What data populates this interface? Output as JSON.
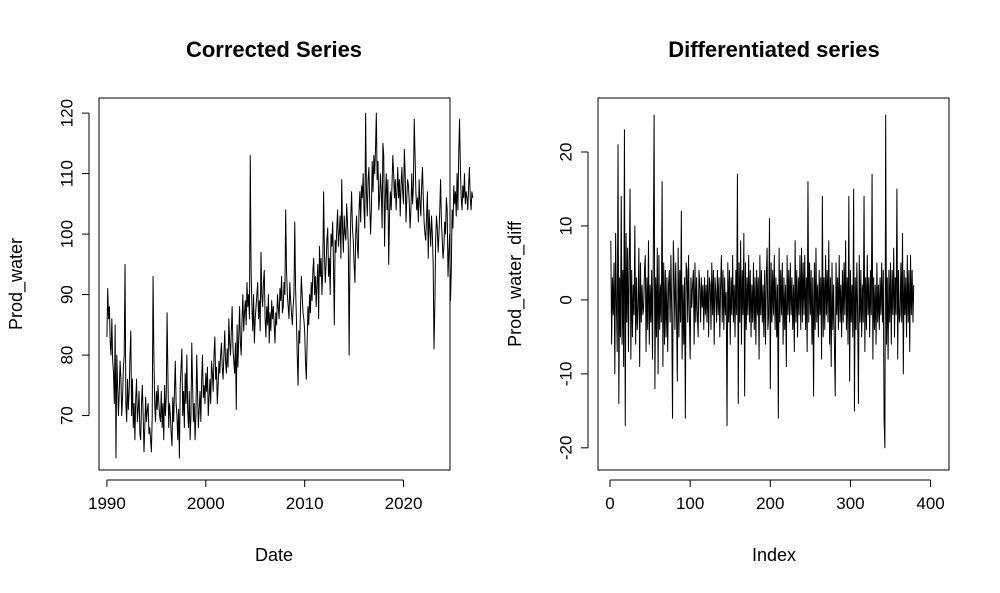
{
  "chart_data": [
    {
      "type": "line",
      "title": "Corrected Series",
      "xlabel": "Date",
      "ylabel": "Prod_water",
      "xlim": [
        1989.2,
        2024.7
      ],
      "ylim": [
        61,
        122.5
      ],
      "xticks": [
        1990,
        2000,
        2010,
        2020
      ],
      "yticks": [
        70,
        80,
        90,
        100,
        110,
        120
      ],
      "grid": false,
      "legend": "none",
      "color": "#000000",
      "series": [
        {
          "x_start": 1990.0,
          "x_step": 0.08333,
          "values": [
            83,
            91,
            86,
            88,
            82,
            80,
            86,
            79,
            77,
            72,
            85,
            63,
            80,
            75,
            70,
            74,
            79,
            76,
            70,
            73,
            78,
            80,
            95,
            72,
            69,
            76,
            71,
            74,
            80,
            84,
            70,
            76,
            68,
            72,
            66,
            73,
            76,
            69,
            71,
            74,
            67,
            66,
            72,
            75,
            70,
            64,
            68,
            73,
            69,
            71,
            72,
            67,
            68,
            66,
            64,
            70,
            93,
            80,
            72,
            69,
            74,
            71,
            75,
            72,
            70,
            69,
            74,
            68,
            72,
            66,
            75,
            70,
            73,
            87,
            77,
            68,
            72,
            70,
            67,
            65,
            73,
            69,
            74,
            79,
            72,
            70,
            66,
            71,
            63,
            75,
            78,
            81,
            70,
            74,
            68,
            77,
            72,
            80,
            71,
            68,
            74,
            66,
            70,
            82,
            75,
            69,
            72,
            66,
            70,
            80,
            74,
            68,
            71,
            74,
            69,
            76,
            80,
            73,
            75,
            72,
            77,
            74,
            78,
            70,
            73,
            76,
            72,
            79,
            77,
            74,
            80,
            83,
            76,
            78,
            72,
            75,
            79,
            77,
            80,
            82,
            78,
            76,
            80,
            84,
            79,
            77,
            81,
            78,
            86,
            82,
            80,
            84,
            88,
            81,
            79,
            77,
            82,
            71,
            85,
            78,
            83,
            88,
            82,
            80,
            86,
            90,
            84,
            87,
            89,
            85,
            92,
            88,
            90,
            86,
            113,
            94,
            88,
            84,
            90,
            82,
            86,
            88,
            90,
            92,
            86,
            89,
            84,
            97,
            90,
            88,
            92,
            94,
            86,
            83,
            88,
            85,
            90,
            82,
            87,
            84,
            89,
            86,
            88,
            85,
            82,
            87,
            85,
            90,
            88,
            86,
            91,
            89,
            93,
            87,
            88,
            92,
            90,
            104,
            94,
            90,
            88,
            86,
            92,
            89,
            87,
            85,
            88,
            90,
            102,
            91,
            86,
            80,
            75,
            84,
            82,
            88,
            93,
            90,
            87,
            86,
            84,
            79,
            76,
            82,
            88,
            85,
            90,
            87,
            92,
            89,
            94,
            96,
            90,
            93,
            88,
            92,
            95,
            86,
            98,
            93,
            96,
            90,
            94,
            107,
            97,
            92,
            95,
            99,
            101,
            93,
            96,
            90,
            100,
            98,
            102,
            95,
            85,
            99,
            97,
            101,
            104,
            98,
            100,
            103,
            96,
            109,
            101,
            97,
            103,
            100,
            99,
            105,
            102,
            98,
            80,
            96,
            103,
            107,
            101,
            99,
            95,
            92,
            100,
            103,
            98,
            96,
            104,
            107,
            102,
            108,
            106,
            110,
            104,
            101,
            120,
            107,
            103,
            109,
            111,
            105,
            100,
            104,
            112,
            107,
            113,
            110,
            114,
            120,
            109,
            112,
            104,
            106,
            110,
            107,
            101,
            115,
            113,
            98,
            106,
            110,
            104,
            109,
            95,
            103,
            107,
            104,
            108,
            113,
            110,
            106,
            109,
            104,
            107,
            111,
            106,
            109,
            103,
            108,
            111,
            107,
            105,
            114,
            110,
            102,
            106,
            109,
            108,
            105,
            101,
            104,
            110,
            105,
            108,
            119,
            113,
            107,
            104,
            106,
            102,
            109,
            105,
            103,
            108,
            111,
            106,
            102,
            100,
            99,
            103,
            107,
            96,
            104,
            101,
            98,
            103,
            100,
            95,
            81,
            88,
            99,
            103,
            101,
            97,
            100,
            104,
            109,
            102,
            99,
            96,
            98,
            102,
            100,
            106,
            104,
            93,
            97,
            100,
            89,
            94,
            104,
            101,
            108,
            105,
            107,
            103,
            110,
            104,
            113,
            119,
            111,
            106,
            104,
            108,
            106,
            110,
            105,
            107,
            106,
            104,
            108,
            111,
            106,
            104,
            107,
            106
          ]
        }
      ]
    },
    {
      "type": "line",
      "title": "Differentiated series",
      "xlabel": "Index",
      "ylabel": "Prod_water_diff",
      "xlim": [
        -15,
        423
      ],
      "ylim": [
        -23,
        27.3
      ],
      "xticks": [
        0,
        100,
        200,
        300,
        400
      ],
      "yticks": [
        -20,
        -10,
        0,
        10,
        20
      ],
      "grid": false,
      "legend": "none",
      "color": "#000000",
      "series": [
        {
          "x_start": 1,
          "x_step": 1,
          "values": [
            8,
            -6,
            3,
            -2,
            5,
            -10,
            9,
            -1,
            -7,
            21,
            -14,
            3,
            -5,
            14,
            -6,
            4,
            -9,
            23,
            -17,
            9,
            -3,
            7,
            -7,
            5,
            15,
            -8,
            4,
            -5,
            2,
            -2,
            10,
            -6,
            3,
            -4,
            -1,
            7,
            -9,
            5,
            -3,
            2,
            -2,
            -1,
            4,
            6,
            -7,
            3,
            -4,
            8,
            -6,
            2,
            -3,
            4,
            -8,
            6,
            25,
            -12,
            3,
            -5,
            7,
            -10,
            6,
            -4,
            2,
            -3,
            16,
            -9,
            5,
            -6,
            4,
            -5,
            3,
            -7,
            2,
            4,
            -3,
            6,
            -2,
            -16,
            8,
            3,
            -4,
            5,
            -2,
            -11,
            7,
            -5,
            4,
            -3,
            12,
            -8,
            2,
            -6,
            3,
            -16,
            5,
            4,
            -3,
            6,
            -2,
            -8,
            3,
            -1,
            2,
            4,
            -6,
            5,
            -3,
            3,
            -2,
            -5,
            4,
            2,
            -3,
            3,
            -1,
            2,
            -4,
            3,
            -2,
            2,
            -3,
            4,
            -5,
            3,
            2,
            -4,
            5,
            -2,
            4,
            -6,
            3,
            1,
            -3,
            4,
            -2,
            3,
            -5,
            2,
            6,
            -3,
            4,
            -4,
            3,
            -2,
            1,
            -17,
            5,
            -3,
            4,
            -6,
            3,
            -2,
            6,
            -3,
            2,
            -5,
            4,
            -2,
            17,
            -14,
            5,
            -3,
            8,
            -6,
            4,
            -2,
            9,
            -13,
            5,
            -4,
            3,
            -2,
            6,
            -3,
            4,
            -5,
            2,
            -3,
            5,
            -4,
            3,
            -6,
            4,
            -2,
            3,
            -8,
            6,
            -2,
            4,
            -3,
            2,
            -5,
            4,
            -6,
            3,
            7,
            -4,
            -2,
            11,
            -12,
            5,
            -3,
            4,
            -2,
            6,
            -4,
            3,
            -5,
            2,
            -16,
            7,
            -3,
            4,
            -2,
            5,
            -6,
            3,
            -4,
            2,
            -9,
            6,
            -2,
            4,
            -3,
            5,
            -2,
            3,
            -4,
            2,
            -7,
            8,
            -3,
            4,
            -5,
            3,
            -2,
            6,
            -4,
            7,
            -3,
            5,
            -2,
            6,
            -4,
            3,
            -7,
            16,
            -3,
            5,
            -2,
            4,
            -6,
            3,
            -13,
            5,
            -4,
            7,
            -3,
            2,
            -5,
            4,
            -2,
            3,
            -8,
            14,
            -5,
            3,
            -4,
            6,
            -2,
            4,
            -3,
            8,
            -6,
            3,
            -9,
            5,
            -4,
            2,
            -6,
            -13,
            5,
            -2,
            3,
            -4,
            6,
            -3,
            2,
            -5,
            4,
            -3,
            5,
            -2,
            8,
            -4,
            3,
            -6,
            14,
            -11,
            4,
            -3,
            2,
            -5,
            15,
            -15,
            3,
            -4,
            5,
            -2,
            -14,
            6,
            -3,
            4,
            -5,
            2,
            -3,
            14,
            -7,
            3,
            -4,
            6,
            -2,
            3,
            -5,
            4,
            -2,
            17,
            -8,
            3,
            -4,
            2,
            -6,
            5,
            -3,
            2,
            -4,
            3,
            -2,
            5,
            -3,
            4,
            -16,
            -20,
            25,
            -6,
            3,
            -8,
            4,
            -3,
            5,
            -6,
            4,
            -2,
            7,
            -5,
            3,
            -2,
            15,
            -8,
            4,
            -3,
            -2,
            5,
            -3,
            9,
            -10,
            4,
            -2,
            3,
            -5,
            6,
            -3,
            4,
            -7,
            6,
            -2,
            4,
            -3,
            2
          ]
        }
      ]
    }
  ]
}
